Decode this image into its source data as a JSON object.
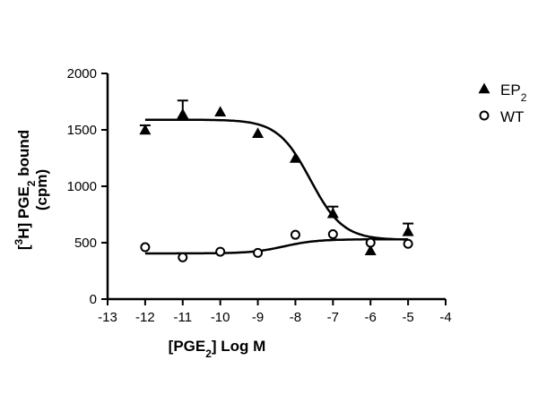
{
  "chart_data": {
    "type": "scatter",
    "title": "",
    "xlabel": {
      "pre": "[PGE",
      "sub": "2",
      "post": "] Log M"
    },
    "ylabel": {
      "line1": {
        "a": "[",
        "sup": "3",
        "b": "H] PGE",
        "sub": "2",
        "c": " bound"
      },
      "line2": "(cpm)"
    },
    "xlim": [
      -13,
      -4
    ],
    "ylim": [
      0,
      2000
    ],
    "x_ticks": [
      -13,
      -12,
      -11,
      -10,
      -9,
      -8,
      -7,
      -6,
      -5,
      -4
    ],
    "y_ticks": [
      0,
      500,
      1000,
      1500,
      2000
    ],
    "grid": false,
    "legend_position": "top-right",
    "series": [
      {
        "name": "EP2",
        "label": {
          "text": "EP",
          "sub": "2"
        },
        "marker": "filled-triangle",
        "points": [
          {
            "x": -12,
            "y": 1500,
            "err": 40
          },
          {
            "x": -11,
            "y": 1640,
            "err": 120
          },
          {
            "x": -10,
            "y": 1660,
            "err": 0
          },
          {
            "x": -9,
            "y": 1470,
            "err": 0
          },
          {
            "x": -8,
            "y": 1250,
            "err": 0
          },
          {
            "x": -7,
            "y": 760,
            "err": 60
          },
          {
            "x": -6,
            "y": 430,
            "err": 0
          },
          {
            "x": -5,
            "y": 600,
            "err": 70
          }
        ],
        "fit": {
          "bottom": 525,
          "top": 1590,
          "logEC50": -7.6,
          "hill": -1
        }
      },
      {
        "name": "WT",
        "label": {
          "text": "WT",
          "sub": ""
        },
        "marker": "open-circle",
        "points": [
          {
            "x": -12,
            "y": 460,
            "err": 0
          },
          {
            "x": -11,
            "y": 370,
            "err": 0
          },
          {
            "x": -10,
            "y": 420,
            "err": 0
          },
          {
            "x": -9,
            "y": 410,
            "err": 0
          },
          {
            "x": -8,
            "y": 570,
            "err": 0
          },
          {
            "x": -7,
            "y": 575,
            "err": 0
          },
          {
            "x": -6,
            "y": 500,
            "err": 0
          },
          {
            "x": -5,
            "y": 490,
            "err": 0
          }
        ],
        "fit": {
          "bottom": 405,
          "top": 530,
          "logEC50": -8.3,
          "hill": 1
        }
      }
    ]
  }
}
